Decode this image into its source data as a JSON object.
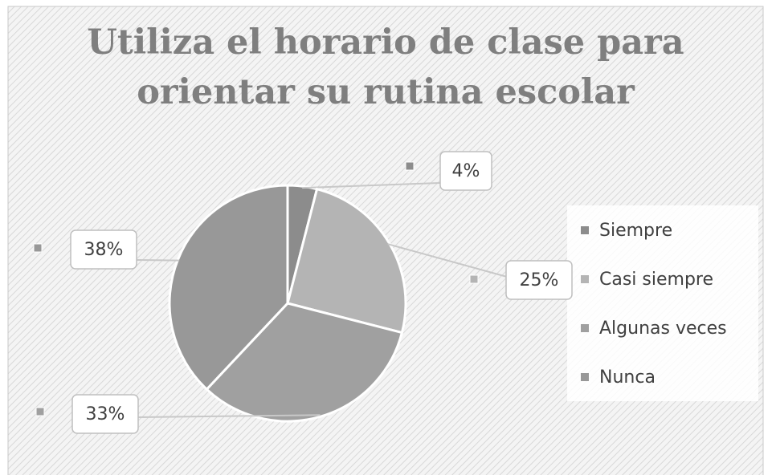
{
  "chart_data": {
    "type": "pie",
    "title": "Utiliza el horario de clase para orientar su rutina escolar",
    "categories": [
      "Siempre",
      "Casi siempre",
      "Algunas veces",
      "Nunca"
    ],
    "values": [
      4,
      25,
      33,
      38
    ],
    "value_labels": [
      "4%",
      "25%",
      "33%",
      "38%"
    ],
    "colors": [
      "#8c8c8c",
      "#b4b4b4",
      "#a0a0a0",
      "#989898"
    ],
    "legend": "right"
  }
}
